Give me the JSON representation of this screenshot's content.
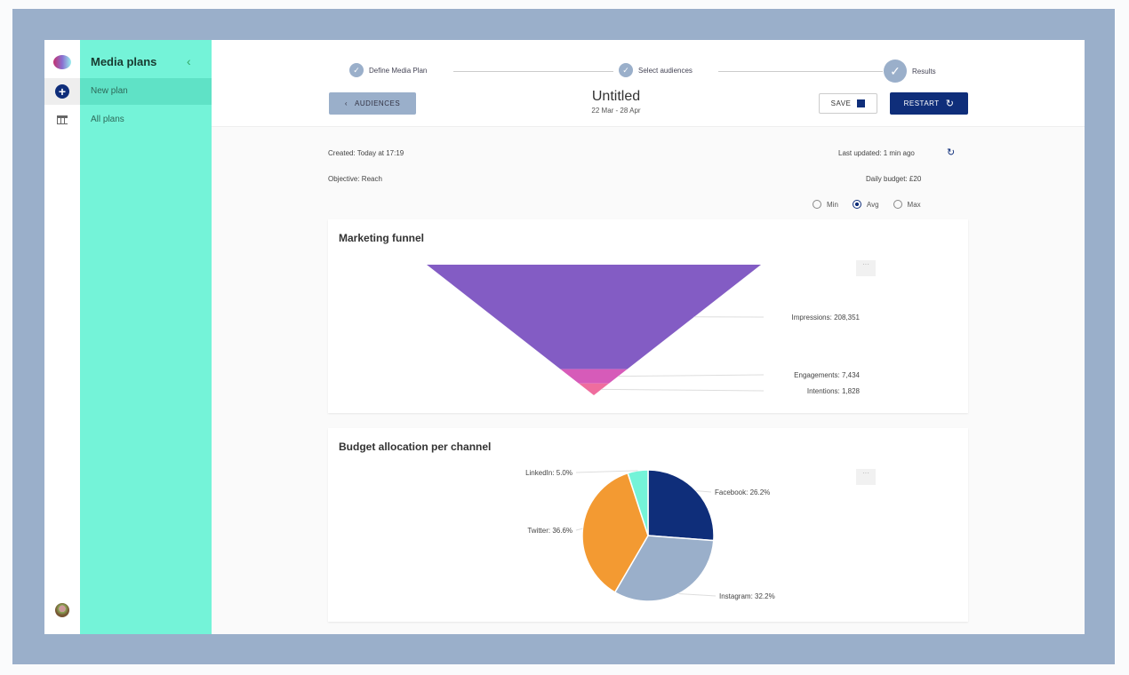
{
  "sidebar": {
    "title": "Media plans",
    "items": [
      {
        "label": "New plan"
      },
      {
        "label": "All plans"
      }
    ]
  },
  "stepper": [
    {
      "label": "Define Media Plan"
    },
    {
      "label": "Select audiences"
    },
    {
      "label": "Results"
    }
  ],
  "header": {
    "back_label": "AUDIENCES",
    "title": "Untitled",
    "dates": "22 Mar - 28 Apr",
    "save_label": "SAVE",
    "restart_label": "RESTART"
  },
  "info": {
    "created": "Created: Today at 17:19",
    "updated": "Last updated: 1 min ago",
    "objective": "Objective: Reach",
    "budget": "Daily budget: £20"
  },
  "range": {
    "options": [
      "Min",
      "Avg",
      "Max"
    ],
    "selected": "Avg"
  },
  "colors": {
    "accent": "#74f3d8",
    "primary": "#0f2e7a"
  },
  "chart_data": [
    {
      "type": "funnel",
      "title": "Marketing funnel",
      "categories": [
        "Impressions",
        "Engagements",
        "Intentions"
      ],
      "values": [
        208351,
        7434,
        1828
      ],
      "labels": [
        "Impressions: 208,351",
        "Engagements: 7,434",
        "Intentions: 1,828"
      ],
      "colors": [
        "#835cc4",
        "#d65bb9",
        "#ef6d9e"
      ]
    },
    {
      "type": "pie",
      "title": "Budget allocation per channel",
      "categories": [
        "Facebook",
        "Instagram",
        "Twitter",
        "LinkedIn"
      ],
      "values": [
        26.2,
        32.2,
        36.6,
        5.0
      ],
      "labels": [
        "Facebook: 26.2%",
        "Instagram: 32.2%",
        "Twitter: 36.6%",
        "LinkedIn: 5.0%"
      ],
      "colors": [
        "#0f2e7a",
        "#9aafca",
        "#f39a32",
        "#74f3d8"
      ]
    }
  ]
}
